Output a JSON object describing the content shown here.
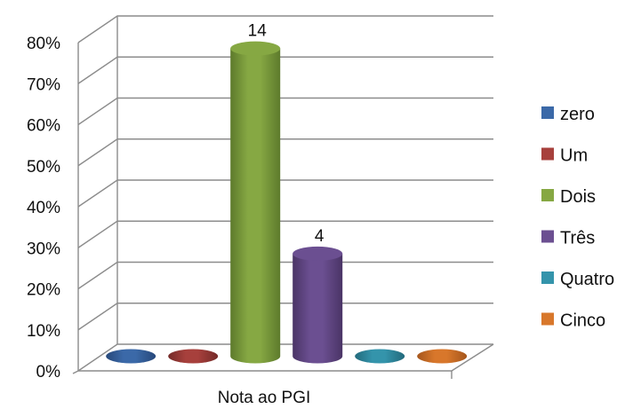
{
  "chart_data": {
    "type": "bar",
    "style": "3d-cylinder",
    "title": "",
    "xlabel": "Nota ao PGI",
    "ylabel": "",
    "categories": [
      "Nota ao PGI"
    ],
    "ylim": [
      0,
      0.8
    ],
    "yticks": [
      {
        "value": 0.0,
        "label": "0%"
      },
      {
        "value": 0.1,
        "label": "10%"
      },
      {
        "value": 0.2,
        "label": "20%"
      },
      {
        "value": 0.3,
        "label": "30%"
      },
      {
        "value": 0.4,
        "label": "40%"
      },
      {
        "value": 0.5,
        "label": "50%"
      },
      {
        "value": 0.6,
        "label": "60%"
      },
      {
        "value": 0.7,
        "label": "70%"
      },
      {
        "value": 0.8,
        "label": "80%"
      }
    ],
    "grid": true,
    "legend_position": "right",
    "series": [
      {
        "name": "zero",
        "value": 0.0,
        "label": "",
        "color": "#3b69a8",
        "dark": "#27487a"
      },
      {
        "name": "Um",
        "value": 0.0,
        "label": "",
        "color": "#a7403c",
        "dark": "#742a28"
      },
      {
        "name": "Dois",
        "value": 0.75,
        "label": "14",
        "color": "#86a843",
        "dark": "#5d7a2c"
      },
      {
        "name": "Três",
        "value": 0.25,
        "label": "4",
        "color": "#6b4f91",
        "dark": "#4a3466"
      },
      {
        "name": "Quatro",
        "value": 0.0,
        "label": "",
        "color": "#3494ab",
        "dark": "#236a7c"
      },
      {
        "name": "Cinco",
        "value": 0.0,
        "label": "",
        "color": "#d8772b",
        "dark": "#a5561c"
      }
    ]
  }
}
